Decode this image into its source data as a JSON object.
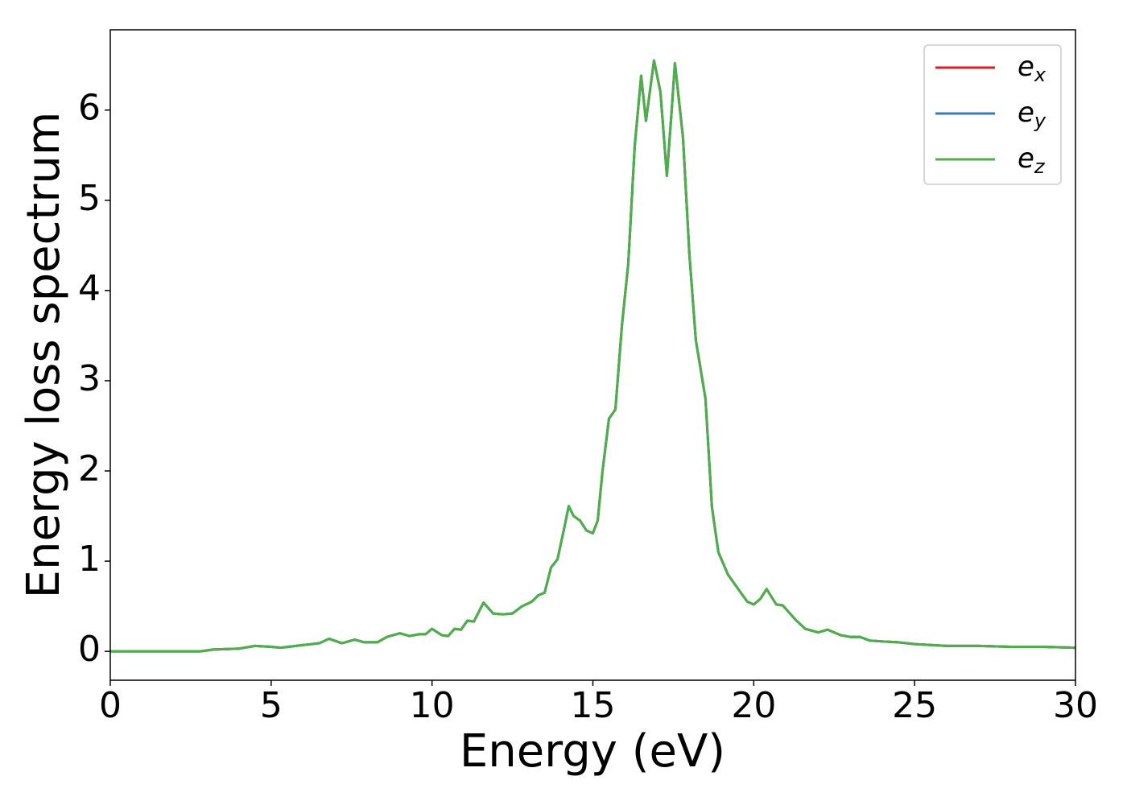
{
  "chart_data": {
    "type": "line",
    "x_label": "Energy (eV)",
    "y_label": "Energy loss spectrum",
    "xlim": [
      0,
      30
    ],
    "ylim": [
      -0.32,
      6.89
    ],
    "xticks": [
      0,
      5,
      10,
      15,
      20,
      25,
      30
    ],
    "yticks": [
      0,
      1,
      2,
      3,
      4,
      5,
      6
    ],
    "legend": "upper right",
    "x": [
      0,
      1,
      2,
      2.8,
      3.2,
      4,
      4.5,
      5,
      5.3,
      6,
      6.5,
      6.8,
      7.2,
      7.6,
      7.9,
      8.3,
      8.6,
      9,
      9.3,
      9.6,
      9.8,
      10,
      10.3,
      10.5,
      10.7,
      10.9,
      11.1,
      11.3,
      11.6,
      11.9,
      12.2,
      12.5,
      12.8,
      13.1,
      13.3,
      13.5,
      13.7,
      13.9,
      14.1,
      14.25,
      14.4,
      14.6,
      14.8,
      15.0,
      15.15,
      15.3,
      15.5,
      15.7,
      15.9,
      16.1,
      16.3,
      16.5,
      16.65,
      16.9,
      17.1,
      17.3,
      17.45,
      17.55,
      17.8,
      18.0,
      18.2,
      18.5,
      18.7,
      18.9,
      19.2,
      19.5,
      19.8,
      20.0,
      20.2,
      20.4,
      20.7,
      20.9,
      21.3,
      21.6,
      22.0,
      22.3,
      22.7,
      23.0,
      23.3,
      23.6,
      24,
      24.5,
      25,
      26,
      27,
      28,
      29,
      30
    ],
    "series": [
      {
        "name": "e_x",
        "color": "#e41a1c",
        "values": [
          0,
          0,
          0,
          0,
          0.02,
          0.03,
          0.06,
          0.05,
          0.04,
          0.07,
          0.09,
          0.14,
          0.09,
          0.13,
          0.1,
          0.1,
          0.16,
          0.2,
          0.17,
          0.19,
          0.19,
          0.25,
          0.18,
          0.17,
          0.25,
          0.24,
          0.34,
          0.33,
          0.54,
          0.42,
          0.41,
          0.42,
          0.5,
          0.55,
          0.62,
          0.65,
          0.93,
          1.02,
          1.35,
          1.61,
          1.5,
          1.45,
          1.34,
          1.31,
          1.45,
          2.0,
          2.58,
          2.68,
          3.6,
          4.3,
          5.6,
          6.38,
          5.88,
          6.55,
          6.2,
          5.27,
          6.0,
          6.52,
          5.7,
          4.4,
          3.45,
          2.8,
          1.6,
          1.1,
          0.85,
          0.7,
          0.55,
          0.52,
          0.58,
          0.69,
          0.52,
          0.51,
          0.35,
          0.25,
          0.21,
          0.24,
          0.18,
          0.16,
          0.16,
          0.12,
          0.11,
          0.1,
          0.08,
          0.06,
          0.06,
          0.05,
          0.05,
          0.04
        ]
      },
      {
        "name": "e_y",
        "color": "#377eb8",
        "values": [
          0,
          0,
          0,
          0,
          0.02,
          0.03,
          0.06,
          0.05,
          0.04,
          0.07,
          0.09,
          0.14,
          0.09,
          0.13,
          0.1,
          0.1,
          0.16,
          0.2,
          0.17,
          0.19,
          0.19,
          0.25,
          0.18,
          0.17,
          0.25,
          0.24,
          0.34,
          0.33,
          0.54,
          0.42,
          0.41,
          0.42,
          0.5,
          0.55,
          0.62,
          0.65,
          0.93,
          1.02,
          1.35,
          1.61,
          1.5,
          1.45,
          1.34,
          1.31,
          1.45,
          2.0,
          2.58,
          2.68,
          3.6,
          4.3,
          5.6,
          6.38,
          5.88,
          6.55,
          6.2,
          5.27,
          6.0,
          6.52,
          5.7,
          4.4,
          3.45,
          2.8,
          1.6,
          1.1,
          0.85,
          0.7,
          0.55,
          0.52,
          0.58,
          0.69,
          0.52,
          0.51,
          0.35,
          0.25,
          0.21,
          0.24,
          0.18,
          0.16,
          0.16,
          0.12,
          0.11,
          0.1,
          0.08,
          0.06,
          0.06,
          0.05,
          0.05,
          0.04
        ]
      },
      {
        "name": "e_z",
        "color": "#4daf4a",
        "values": [
          0,
          0,
          0,
          0,
          0.02,
          0.03,
          0.06,
          0.05,
          0.04,
          0.07,
          0.09,
          0.14,
          0.09,
          0.13,
          0.1,
          0.1,
          0.16,
          0.2,
          0.17,
          0.19,
          0.19,
          0.25,
          0.18,
          0.17,
          0.25,
          0.24,
          0.34,
          0.33,
          0.54,
          0.42,
          0.41,
          0.42,
          0.5,
          0.55,
          0.62,
          0.65,
          0.93,
          1.02,
          1.35,
          1.61,
          1.5,
          1.45,
          1.34,
          1.31,
          1.45,
          2.0,
          2.58,
          2.68,
          3.6,
          4.3,
          5.6,
          6.38,
          5.88,
          6.55,
          6.2,
          5.27,
          6.0,
          6.52,
          5.7,
          4.4,
          3.45,
          2.8,
          1.6,
          1.1,
          0.85,
          0.7,
          0.55,
          0.52,
          0.58,
          0.69,
          0.52,
          0.51,
          0.35,
          0.25,
          0.21,
          0.24,
          0.18,
          0.16,
          0.16,
          0.12,
          0.11,
          0.1,
          0.08,
          0.06,
          0.06,
          0.05,
          0.05,
          0.04
        ]
      }
    ]
  }
}
